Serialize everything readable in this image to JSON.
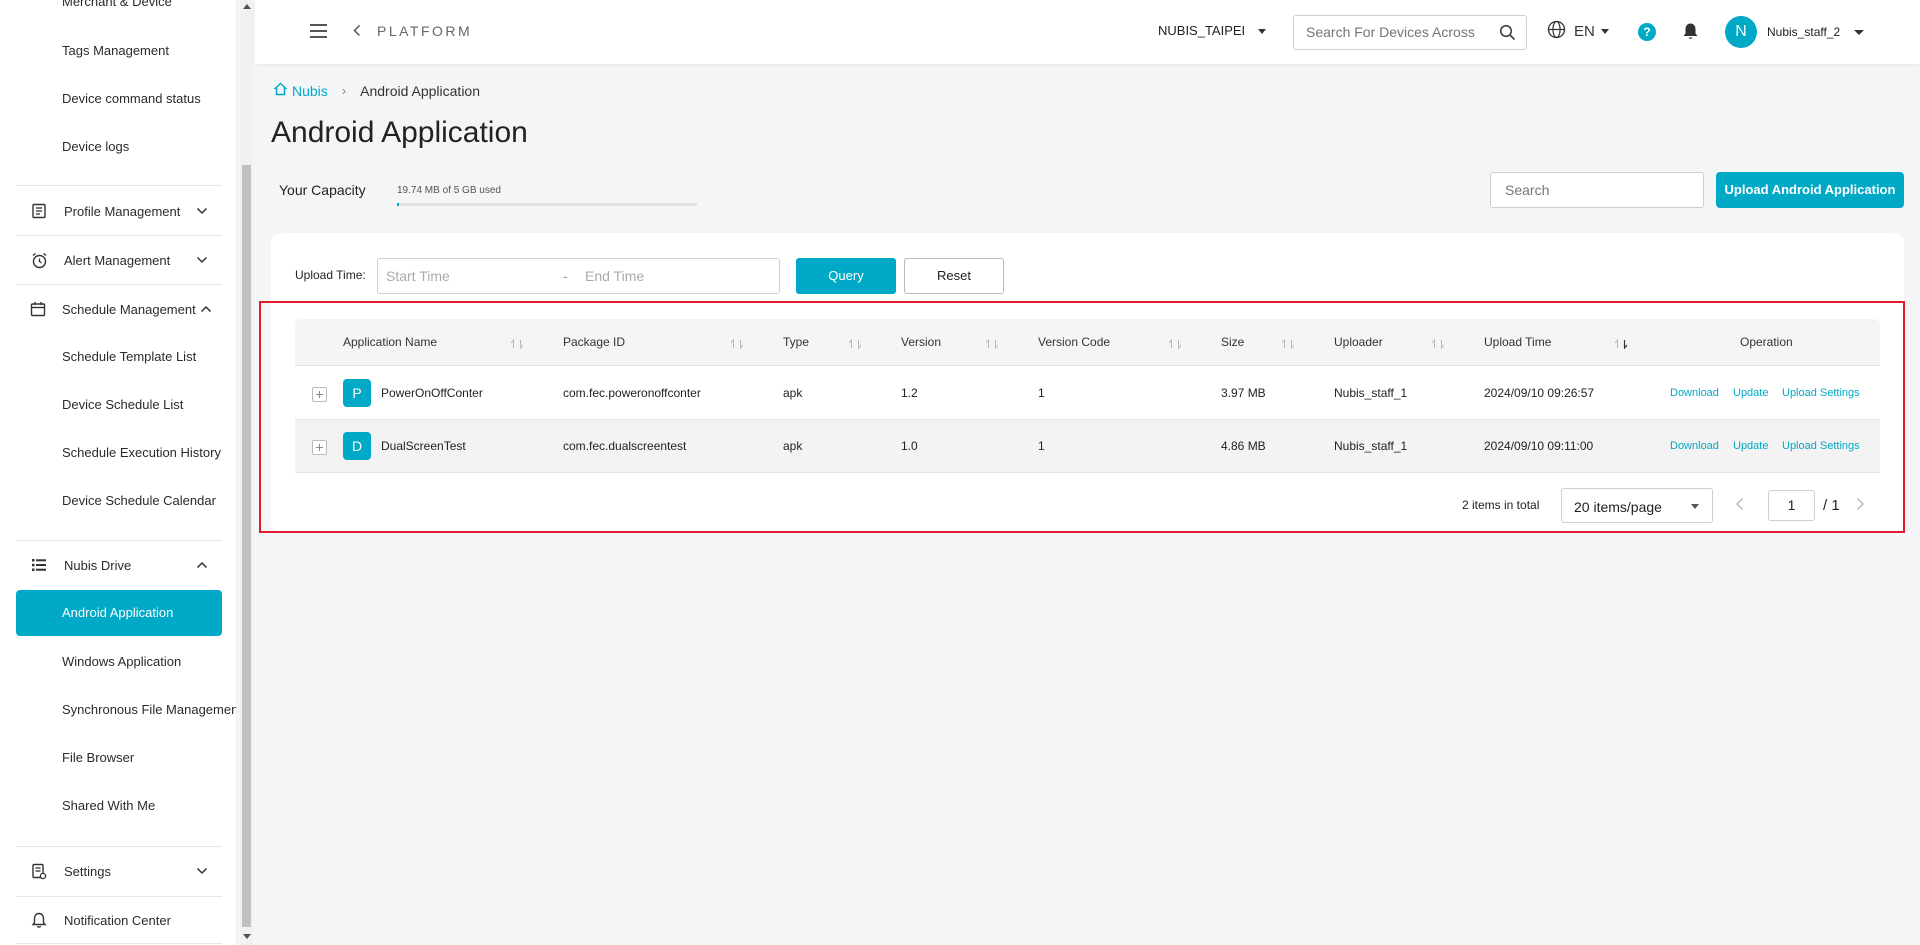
{
  "sidebar": {
    "top_items": [
      "Merchant & Device",
      "Tags Management",
      "Device command status",
      "Device logs"
    ],
    "groups": {
      "profile": "Profile Management",
      "alert": "Alert Management",
      "schedule": "Schedule Management",
      "drive": "Nubis Drive",
      "settings": "Settings",
      "notification": "Notification Center"
    },
    "schedule_items": [
      "Schedule Template List",
      "Device Schedule List",
      "Schedule Execution History",
      "Device Schedule Calendar"
    ],
    "drive_items": [
      "Android Application",
      "Windows Application",
      "Synchronous File Management",
      "File Browser",
      "Shared With Me"
    ],
    "active_item": "Android Application"
  },
  "header": {
    "platform": "PLATFORM",
    "organization": "NUBIS_TAIPEI",
    "search_placeholder": "Search For Devices Across",
    "language": "EN",
    "help": "?",
    "avatar_initial": "N",
    "username": "Nubis_staff_2"
  },
  "breadcrumb": {
    "home": "Nubis",
    "current": "Android Application"
  },
  "page_title": "Android Application",
  "capacity": {
    "label": "Your Capacity",
    "used_text": "19.74 MB of 5 GB used",
    "used_fraction": 0.004
  },
  "toolbar": {
    "search_placeholder": "Search",
    "upload_label": "Upload Android Application"
  },
  "filter": {
    "label": "Upload Time:",
    "start_placeholder": "Start Time",
    "separator": "-",
    "end_placeholder": "End Time",
    "query_label": "Query",
    "reset_label": "Reset"
  },
  "table": {
    "columns": [
      "Application Name",
      "Package ID",
      "Type",
      "Version",
      "Version Code",
      "Size",
      "Uploader",
      "Upload Time",
      "Operation"
    ],
    "rows": [
      {
        "initial": "P",
        "name": "PowerOnOffConter",
        "package": "com.fec.poweronoffconter",
        "type": "apk",
        "version": "1.2",
        "version_code": "1",
        "size": "3.97 MB",
        "uploader": "Nubis_staff_1",
        "upload_time": "2024/09/10 09:26:57"
      },
      {
        "initial": "D",
        "name": "DualScreenTest",
        "package": "com.fec.dualscreentest",
        "type": "apk",
        "version": "1.0",
        "version_code": "1",
        "size": "4.86 MB",
        "uploader": "Nubis_staff_1",
        "upload_time": "2024/09/10 09:11:00"
      }
    ],
    "operations": {
      "download": "Download",
      "update": "Update",
      "upload_settings": "Upload Settings"
    }
  },
  "pagination": {
    "total_text": "2 items in total",
    "page_size": "20 items/page",
    "current_page": "1",
    "of_text": "/ 1"
  }
}
